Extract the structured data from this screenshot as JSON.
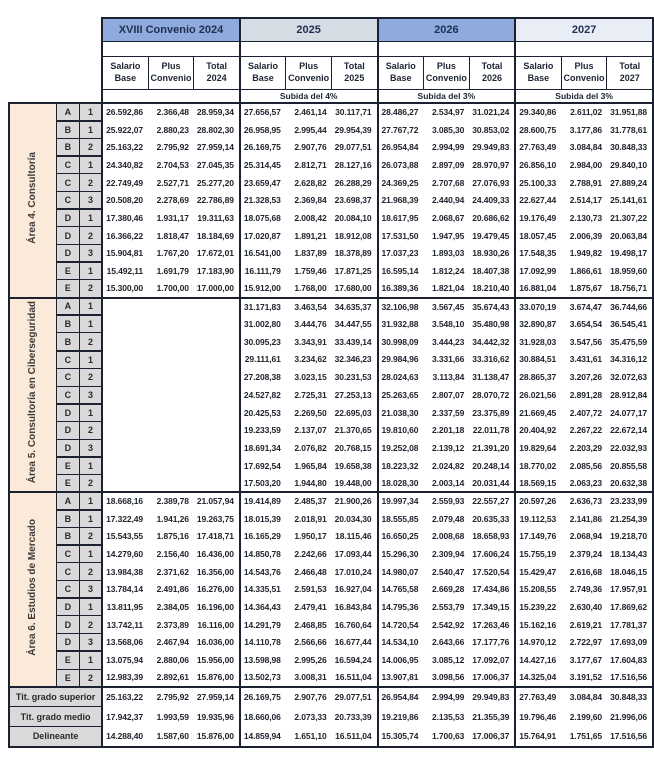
{
  "table": {
    "year_headers": [
      "XVIII Convenio 2024",
      "2025",
      "2026",
      "2027"
    ],
    "sub_headers": [
      {
        "l1": "Salario",
        "l2": "Base"
      },
      {
        "l1": "Plus",
        "l2": "Convenio"
      },
      {
        "l1": "Total",
        "l2": "2024"
      },
      {
        "l1": "Salario",
        "l2": "Base"
      },
      {
        "l1": "Plus",
        "l2": "Convenio"
      },
      {
        "l1": "Total",
        "l2": "2025"
      },
      {
        "l1": "Salario",
        "l2": "Base"
      },
      {
        "l1": "Plus",
        "l2": "Convenio"
      },
      {
        "l1": "Total",
        "l2": "2026"
      },
      {
        "l1": "Salario",
        "l2": "Base"
      },
      {
        "l1": "Plus",
        "l2": "Convenio"
      },
      {
        "l1": "Total",
        "l2": "2027"
      }
    ],
    "subida_labels": [
      "",
      "Subida del 4%",
      "Subida del 3%",
      "Subida del 3%"
    ],
    "areas": [
      {
        "label": "Área 4. Consultoría",
        "rows": [
          {
            "letter": "A",
            "level": "1",
            "values": [
              "26.592,86",
              "2.366,48",
              "28.959,34",
              "27.656,57",
              "2.461,14",
              "30.117,71",
              "28.486,27",
              "2.534,97",
              "31.021,24",
              "29.340,86",
              "2.611,02",
              "31.951,88"
            ]
          },
          {
            "letter": "B",
            "level": "1",
            "values": [
              "25.922,07",
              "2.880,23",
              "28.802,30",
              "26.958,95",
              "2.995,44",
              "29.954,39",
              "27.767,72",
              "3.085,30",
              "30.853,02",
              "28.600,75",
              "3.177,86",
              "31.778,61"
            ]
          },
          {
            "letter": "B",
            "level": "2",
            "values": [
              "25.163,22",
              "2.795,92",
              "27.959,14",
              "26.169,75",
              "2.907,76",
              "29.077,51",
              "26.954,84",
              "2.994,99",
              "29.949,83",
              "27.763,49",
              "3.084,84",
              "30.848,33"
            ]
          },
          {
            "letter": "C",
            "level": "1",
            "values": [
              "24.340,82",
              "2.704,53",
              "27.045,35",
              "25.314,45",
              "2.812,71",
              "28.127,16",
              "26.073,88",
              "2.897,09",
              "28.970,97",
              "26.856,10",
              "2.984,00",
              "29.840,10"
            ]
          },
          {
            "letter": "C",
            "level": "2",
            "values": [
              "22.749,49",
              "2.527,71",
              "25.277,20",
              "23.659,47",
              "2.628,82",
              "26.288,29",
              "24.369,25",
              "2.707,68",
              "27.076,93",
              "25.100,33",
              "2.788,91",
              "27.889,24"
            ]
          },
          {
            "letter": "C",
            "level": "3",
            "values": [
              "20.508,20",
              "2.278,69",
              "22.786,89",
              "21.328,53",
              "2.369,84",
              "23.698,37",
              "21.968,39",
              "2.440,94",
              "24.409,33",
              "22.627,44",
              "2.514,17",
              "25.141,61"
            ]
          },
          {
            "letter": "D",
            "level": "1",
            "values": [
              "17.380,46",
              "1.931,17",
              "19.311,63",
              "18.075,68",
              "2.008,42",
              "20.084,10",
              "18.617,95",
              "2.068,67",
              "20.686,62",
              "19.176,49",
              "2.130,73",
              "21.307,22"
            ]
          },
          {
            "letter": "D",
            "level": "2",
            "values": [
              "16.366,22",
              "1.818,47",
              "18.184,69",
              "17.020,87",
              "1.891,21",
              "18.912,08",
              "17.531,50",
              "1.947,95",
              "19.479,45",
              "18.057,45",
              "2.006,39",
              "20.063,84"
            ]
          },
          {
            "letter": "D",
            "level": "3",
            "values": [
              "15.904,81",
              "1.767,20",
              "17.672,01",
              "16.541,00",
              "1.837,89",
              "18.378,89",
              "17.037,23",
              "1.893,03",
              "18.930,26",
              "17.548,35",
              "1.949,82",
              "19.498,17"
            ]
          },
          {
            "letter": "E",
            "level": "1",
            "values": [
              "15.492,11",
              "1.691,79",
              "17.183,90",
              "16.111,79",
              "1.759,46",
              "17.871,25",
              "16.595,14",
              "1.812,24",
              "18.407,38",
              "17.092,99",
              "1.866,61",
              "18.959,60"
            ]
          },
          {
            "letter": "E",
            "level": "2",
            "values": [
              "15.300,00",
              "1.700,00",
              "17.000,00",
              "15.912,00",
              "1.768,00",
              "17.680,00",
              "16.389,36",
              "1.821,04",
              "18.210,40",
              "16.881,04",
              "1.875,67",
              "18.756,71"
            ]
          }
        ]
      },
      {
        "label": "Área 5. Consultoría en Ciberseguridad",
        "rows": [
          {
            "letter": "A",
            "level": "1",
            "values": [
              "",
              "",
              "",
              "31.171,83",
              "3.463,54",
              "34.635,37",
              "32.106,98",
              "3.567,45",
              "35.674,43",
              "33.070,19",
              "3.674,47",
              "36.744,66"
            ]
          },
          {
            "letter": "B",
            "level": "1",
            "values": [
              "",
              "",
              "",
              "31.002,80",
              "3.444,76",
              "34.447,55",
              "31.932,88",
              "3.548,10",
              "35.480,98",
              "32.890,87",
              "3.654,54",
              "36.545,41"
            ]
          },
          {
            "letter": "B",
            "level": "2",
            "values": [
              "",
              "",
              "",
              "30.095,23",
              "3.343,91",
              "33.439,14",
              "30.998,09",
              "3.444,23",
              "34.442,32",
              "31.928,03",
              "3.547,56",
              "35.475,59"
            ]
          },
          {
            "letter": "C",
            "level": "1",
            "values": [
              "",
              "",
              "",
              "29.111,61",
              "3.234,62",
              "32.346,23",
              "29.984,96",
              "3.331,66",
              "33.316,62",
              "30.884,51",
              "3.431,61",
              "34.316,12"
            ]
          },
          {
            "letter": "C",
            "level": "2",
            "values": [
              "",
              "",
              "",
              "27.208,38",
              "3.023,15",
              "30.231,53",
              "28.024,63",
              "3.113,84",
              "31.138,47",
              "28.865,37",
              "3.207,26",
              "32.072,63"
            ]
          },
          {
            "letter": "C",
            "level": "3",
            "values": [
              "",
              "",
              "",
              "24.527,82",
              "2.725,31",
              "27.253,13",
              "25.263,65",
              "2.807,07",
              "28.070,72",
              "26.021,56",
              "2.891,28",
              "28.912,84"
            ]
          },
          {
            "letter": "D",
            "level": "1",
            "values": [
              "",
              "",
              "",
              "20.425,53",
              "2.269,50",
              "22.695,03",
              "21.038,30",
              "2.337,59",
              "23.375,89",
              "21.669,45",
              "2.407,72",
              "24.077,17"
            ]
          },
          {
            "letter": "D",
            "level": "2",
            "values": [
              "",
              "",
              "",
              "19.233,59",
              "2.137,07",
              "21.370,65",
              "19.810,60",
              "2.201,18",
              "22.011,78",
              "20.404,92",
              "2.267,22",
              "22.672,14"
            ]
          },
          {
            "letter": "D",
            "level": "3",
            "values": [
              "",
              "",
              "",
              "18.691,34",
              "2.076,82",
              "20.768,15",
              "19.252,08",
              "2.139,12",
              "21.391,20",
              "19.829,64",
              "2.203,29",
              "22.032,93"
            ]
          },
          {
            "letter": "E",
            "level": "1",
            "values": [
              "",
              "",
              "",
              "17.692,54",
              "1.965,84",
              "19.658,38",
              "18.223,32",
              "2.024,82",
              "20.248,14",
              "18.770,02",
              "2.085,56",
              "20.855,58"
            ]
          },
          {
            "letter": "E",
            "level": "2",
            "values": [
              "",
              "",
              "",
              "17.503,20",
              "1.944,80",
              "19.448,00",
              "18.028,30",
              "2.003,14",
              "20.031,44",
              "18.569,15",
              "2.063,23",
              "20.632,38"
            ]
          }
        ]
      },
      {
        "label": "Área 6. Estudios de Mercado",
        "rows": [
          {
            "letter": "A",
            "level": "1",
            "values": [
              "18.668,16",
              "2.389,78",
              "21.057,94",
              "19.414,89",
              "2.485,37",
              "21.900,26",
              "19.997,34",
              "2.559,93",
              "22.557,27",
              "20.597,26",
              "2.636,73",
              "23.233,99"
            ]
          },
          {
            "letter": "B",
            "level": "1",
            "values": [
              "17.322,49",
              "1.941,26",
              "19.263,75",
              "18.015,39",
              "2.018,91",
              "20.034,30",
              "18.555,85",
              "2.079,48",
              "20.635,33",
              "19.112,53",
              "2.141,86",
              "21.254,39"
            ]
          },
          {
            "letter": "B",
            "level": "2",
            "values": [
              "15.543,55",
              "1.875,16",
              "17.418,71",
              "16.165,29",
              "1.950,17",
              "18.115,46",
              "16.650,25",
              "2.008,68",
              "18.658,93",
              "17.149,76",
              "2.068,94",
              "19.218,70"
            ]
          },
          {
            "letter": "C",
            "level": "1",
            "values": [
              "14.279,60",
              "2.156,40",
              "16.436,00",
              "14.850,78",
              "2.242,66",
              "17.093,44",
              "15.296,30",
              "2.309,94",
              "17.606,24",
              "15.755,19",
              "2.379,24",
              "18.134,43"
            ]
          },
          {
            "letter": "C",
            "level": "2",
            "values": [
              "13.984,38",
              "2.371,62",
              "16.356,00",
              "14.543,76",
              "2.466,48",
              "17.010,24",
              "14.980,07",
              "2.540,47",
              "17.520,54",
              "15.429,47",
              "2.616,68",
              "18.046,15"
            ]
          },
          {
            "letter": "C",
            "level": "3",
            "values": [
              "13.784,14",
              "2.491,86",
              "16.276,00",
              "14.335,51",
              "2.591,53",
              "16.927,04",
              "14.765,58",
              "2.669,28",
              "17.434,86",
              "15.208,55",
              "2.749,36",
              "17.957,91"
            ]
          },
          {
            "letter": "D",
            "level": "1",
            "values": [
              "13.811,95",
              "2.384,05",
              "16.196,00",
              "14.364,43",
              "2.479,41",
              "16.843,84",
              "14.795,36",
              "2.553,79",
              "17.349,15",
              "15.239,22",
              "2.630,40",
              "17.869,62"
            ]
          },
          {
            "letter": "D",
            "level": "2",
            "values": [
              "13.742,11",
              "2.373,89",
              "16.116,00",
              "14.291,79",
              "2.468,85",
              "16.760,64",
              "14.720,54",
              "2.542,92",
              "17.263,46",
              "15.162,16",
              "2.619,21",
              "17.781,37"
            ]
          },
          {
            "letter": "D",
            "level": "3",
            "values": [
              "13.568,06",
              "2.467,94",
              "16.036,00",
              "14.110,78",
              "2.566,66",
              "16.677,44",
              "14.534,10",
              "2.643,66",
              "17.177,76",
              "14.970,12",
              "2.722,97",
              "17.693,09"
            ]
          },
          {
            "letter": "E",
            "level": "1",
            "values": [
              "13.075,94",
              "2.880,06",
              "15.956,00",
              "13.598,98",
              "2.995,26",
              "16.594,24",
              "14.006,95",
              "3.085,12",
              "17.092,07",
              "14.427,16",
              "3.177,67",
              "17.604,83"
            ]
          },
          {
            "letter": "E",
            "level": "2",
            "values": [
              "12.983,39",
              "2.892,61",
              "15.876,00",
              "13.502,73",
              "3.008,31",
              "16.511,04",
              "13.907,81",
              "3.098,56",
              "17.006,37",
              "14.325,04",
              "3.191,52",
              "17.516,56"
            ]
          }
        ]
      }
    ],
    "footer_rows": [
      {
        "label": "Tit. grado superior",
        "values": [
          "25.163,22",
          "2.795,92",
          "27.959,14",
          "26.169,75",
          "2.907,76",
          "29.077,51",
          "26.954,84",
          "2.994,99",
          "29.949,83",
          "27.763,49",
          "3.084,84",
          "30.848,33"
        ]
      },
      {
        "label": "Tit. grado medio",
        "values": [
          "17.942,37",
          "1.993,59",
          "19.935,96",
          "18.660,06",
          "2.073,33",
          "20.733,39",
          "19.219,86",
          "2.135,53",
          "21.355,39",
          "19.796,46",
          "2.199,60",
          "21.996,06"
        ]
      },
      {
        "label": "Delineante",
        "values": [
          "14.288,40",
          "1.587,60",
          "15.876,00",
          "14.859,94",
          "1.651,10",
          "16.511,04",
          "15.305,74",
          "1.700,63",
          "17.006,37",
          "15.764,91",
          "1.751,65",
          "17.516,56"
        ]
      }
    ],
    "colors": {
      "year_2024_bg": "#8FAADC",
      "year_2025_bg": "#D6DCE4",
      "year_2026_bg": "#8FAADC",
      "year_2027_bg": "#E9EEF6",
      "area_label_bg": "#FBE9D9",
      "grade_cell_bg": "#D9D9D9",
      "border": "#1B2130"
    }
  }
}
